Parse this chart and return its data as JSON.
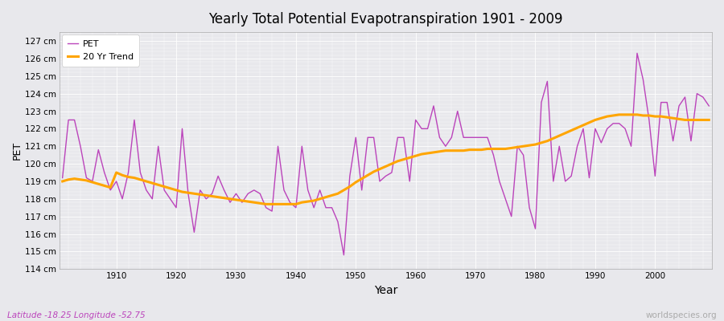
{
  "title": "Yearly Total Potential Evapotranspiration 1901 - 2009",
  "xlabel": "Year",
  "ylabel": "PET",
  "lat_lon_label": "Latitude -18.25 Longitude -52.75",
  "watermark": "worldspecies.org",
  "background_color": "#e8e8ec",
  "plot_bg_color": "#e8e8ec",
  "pet_color": "#bb44bb",
  "trend_color": "#ffa500",
  "ylim": [
    114,
    127.5
  ],
  "ytick_values": [
    114,
    115,
    116,
    117,
    118,
    119,
    120,
    121,
    122,
    123,
    124,
    125,
    126,
    127
  ],
  "ytick_labels": [
    "114 cm",
    "115 cm",
    "116 cm",
    "117 cm",
    "118 cm",
    "119 cm",
    "120 cm",
    "121 cm",
    "122 cm",
    "123 cm",
    "124 cm",
    "125 cm",
    "126 cm",
    "127 cm"
  ],
  "xtick_values": [
    1910,
    1920,
    1930,
    1940,
    1950,
    1960,
    1970,
    1980,
    1990,
    2000
  ],
  "years": [
    1901,
    1902,
    1903,
    1904,
    1905,
    1906,
    1907,
    1908,
    1909,
    1910,
    1911,
    1912,
    1913,
    1914,
    1915,
    1916,
    1917,
    1918,
    1919,
    1920,
    1921,
    1922,
    1923,
    1924,
    1925,
    1926,
    1927,
    1928,
    1929,
    1930,
    1931,
    1932,
    1933,
    1934,
    1935,
    1936,
    1937,
    1938,
    1939,
    1940,
    1941,
    1942,
    1943,
    1944,
    1945,
    1946,
    1947,
    1948,
    1949,
    1950,
    1951,
    1952,
    1953,
    1954,
    1955,
    1956,
    1957,
    1958,
    1959,
    1960,
    1961,
    1962,
    1963,
    1964,
    1965,
    1966,
    1967,
    1968,
    1969,
    1970,
    1971,
    1972,
    1973,
    1974,
    1975,
    1976,
    1977,
    1978,
    1979,
    1980,
    1981,
    1982,
    1983,
    1984,
    1985,
    1986,
    1987,
    1988,
    1989,
    1990,
    1991,
    1992,
    1993,
    1994,
    1995,
    1996,
    1997,
    1998,
    1999,
    2000,
    2001,
    2002,
    2003,
    2004,
    2005,
    2006,
    2007,
    2008,
    2009
  ],
  "pet_values": [
    119.2,
    122.5,
    122.5,
    121.0,
    119.2,
    119.0,
    120.8,
    119.5,
    118.5,
    119.0,
    118.0,
    119.5,
    122.5,
    119.5,
    118.5,
    118.0,
    121.0,
    118.5,
    118.0,
    117.5,
    122.0,
    118.3,
    116.1,
    118.5,
    118.0,
    118.3,
    119.3,
    118.5,
    117.8,
    118.3,
    117.8,
    118.3,
    118.5,
    118.3,
    117.5,
    117.3,
    121.0,
    118.5,
    117.8,
    117.5,
    121.0,
    118.5,
    117.5,
    118.5,
    117.5,
    117.5,
    116.7,
    114.8,
    119.3,
    121.5,
    118.5,
    121.5,
    121.5,
    119.0,
    119.3,
    119.5,
    121.5,
    121.5,
    119.0,
    122.5,
    122.0,
    122.0,
    123.3,
    121.5,
    121.0,
    121.5,
    123.0,
    121.5,
    121.5,
    121.5,
    121.5,
    121.5,
    120.5,
    119.0,
    118.0,
    117.0,
    121.0,
    120.5,
    117.5,
    116.3,
    123.5,
    124.7,
    119.0,
    121.0,
    119.0,
    119.3,
    121.0,
    122.0,
    119.2,
    122.0,
    121.2,
    122.0,
    122.3,
    122.3,
    122.0,
    121.0,
    126.3,
    124.8,
    122.5,
    119.3,
    123.5,
    123.5,
    121.3,
    123.3,
    123.8,
    121.3,
    124.0,
    123.8,
    123.3
  ],
  "trend_values": [
    119.0,
    119.1,
    119.15,
    119.1,
    119.05,
    118.95,
    118.85,
    118.75,
    118.65,
    119.5,
    119.35,
    119.25,
    119.2,
    119.1,
    119.0,
    118.9,
    118.8,
    118.7,
    118.6,
    118.5,
    118.4,
    118.35,
    118.3,
    118.25,
    118.2,
    118.15,
    118.1,
    118.05,
    118.0,
    117.95,
    117.9,
    117.85,
    117.8,
    117.75,
    117.7,
    117.7,
    117.7,
    117.7,
    117.7,
    117.7,
    117.8,
    117.85,
    117.9,
    118.0,
    118.1,
    118.2,
    118.3,
    118.5,
    118.7,
    118.95,
    119.15,
    119.35,
    119.55,
    119.7,
    119.85,
    120.0,
    120.15,
    120.25,
    120.35,
    120.45,
    120.55,
    120.6,
    120.65,
    120.7,
    120.75,
    120.75,
    120.75,
    120.75,
    120.8,
    120.8,
    120.8,
    120.85,
    120.85,
    120.85,
    120.85,
    120.9,
    120.95,
    121.0,
    121.05,
    121.1,
    121.2,
    121.3,
    121.45,
    121.6,
    121.75,
    121.9,
    122.05,
    122.2,
    122.35,
    122.5,
    122.6,
    122.7,
    122.75,
    122.8,
    122.8,
    122.8,
    122.8,
    122.75,
    122.75,
    122.7,
    122.7,
    122.65,
    122.6,
    122.55,
    122.5,
    122.5,
    122.5,
    122.5,
    122.5
  ]
}
